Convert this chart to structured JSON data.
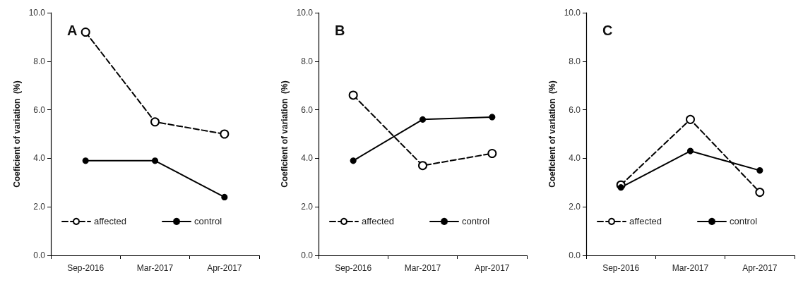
{
  "chart_data": [
    {
      "type": "line",
      "title": "A",
      "ylabel": "Coeficient of variation  (%)",
      "categories": [
        "Sep-2016",
        "Mar-2017",
        "Apr-2017"
      ],
      "ylim": [
        0,
        10
      ],
      "yticks": [
        {
          "value": 0,
          "label": "0.0"
        },
        {
          "value": 2,
          "label": "2.0"
        },
        {
          "value": 4,
          "label": "4.0"
        },
        {
          "value": 6,
          "label": "6.0"
        },
        {
          "value": 8,
          "label": "8.0"
        },
        {
          "value": 10,
          "label": "10.0"
        }
      ],
      "grid": false,
      "legend": "bottom",
      "marker": "circle",
      "series": [
        {
          "name": "affected",
          "color": "#000000",
          "line_style": "dashed",
          "values": [
            9.2,
            5.5,
            5.0
          ]
        },
        {
          "name": "control",
          "color": "#000000",
          "line_style": "solid",
          "values": [
            3.9,
            3.9,
            2.4
          ]
        }
      ]
    },
    {
      "type": "line",
      "title": "B",
      "ylabel": "Coeficient of variation  (%)",
      "categories": [
        "Sep-2016",
        "Mar-2017",
        "Apr-2017"
      ],
      "ylim": [
        0,
        10
      ],
      "yticks": [
        {
          "value": 0,
          "label": "0.0"
        },
        {
          "value": 2,
          "label": "2.0"
        },
        {
          "value": 4,
          "label": "4.0"
        },
        {
          "value": 6,
          "label": "6.0"
        },
        {
          "value": 8,
          "label": "8.0"
        },
        {
          "value": 10,
          "label": "10.0"
        }
      ],
      "grid": false,
      "legend": "bottom",
      "marker": "circle",
      "series": [
        {
          "name": "affected",
          "color": "#000000",
          "line_style": "dashed",
          "values": [
            6.6,
            3.7,
            4.2
          ]
        },
        {
          "name": "control",
          "color": "#000000",
          "line_style": "solid",
          "values": [
            3.9,
            5.6,
            5.7
          ]
        }
      ]
    },
    {
      "type": "line",
      "title": "C",
      "ylabel": "Coeficient of variation  (%)",
      "categories": [
        "Sep-2016",
        "Mar-2017",
        "Apr-2017"
      ],
      "ylim": [
        0,
        10
      ],
      "yticks": [
        {
          "value": 0,
          "label": "0.0"
        },
        {
          "value": 2,
          "label": "2.0"
        },
        {
          "value": 4,
          "label": "4.0"
        },
        {
          "value": 6,
          "label": "6.0"
        },
        {
          "value": 8,
          "label": "8.0"
        },
        {
          "value": 10,
          "label": "10.0"
        }
      ],
      "grid": false,
      "legend": "bottom",
      "marker": "circle",
      "series": [
        {
          "name": "affected",
          "color": "#000000",
          "line_style": "dashed",
          "values": [
            2.9,
            5.6,
            2.6
          ]
        },
        {
          "name": "control",
          "color": "#000000",
          "line_style": "solid",
          "values": [
            2.8,
            4.3,
            3.5
          ]
        }
      ]
    }
  ]
}
